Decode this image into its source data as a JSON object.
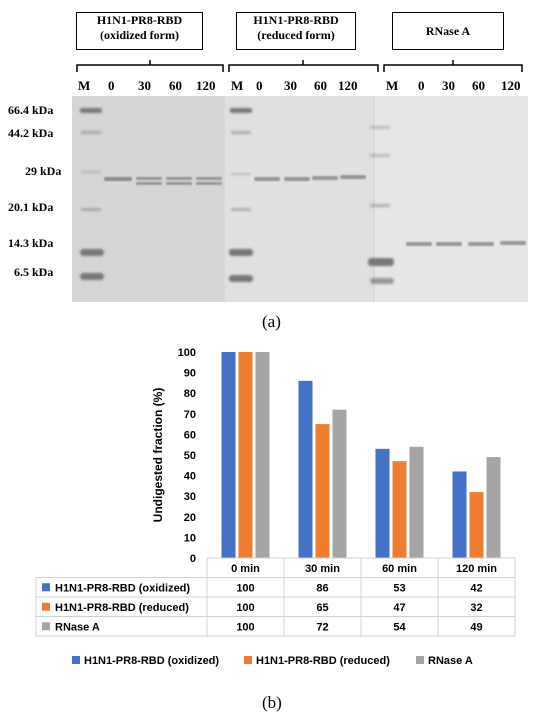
{
  "gel_panel": {
    "boxes": [
      {
        "line1": "H1N1-PR8-RBD",
        "line2": "(oxidized form)"
      },
      {
        "line1": "H1N1-PR8-RBD",
        "line2": "(reduced form)"
      },
      {
        "line1": "RNase A",
        "line2": ""
      }
    ],
    "lanes_group1": [
      "M",
      "0",
      "30",
      "60",
      "120"
    ],
    "lanes_group2": [
      "M",
      "0",
      "30",
      "60",
      "120"
    ],
    "lanes_group3": [
      "M",
      "0",
      "30",
      "60",
      "120"
    ],
    "markers": [
      "66.4 kDa",
      "44.2 kDa",
      "29 kDa",
      "20.1 kDa",
      "14.3 kDa",
      "6.5 kDa"
    ],
    "label": "(a)"
  },
  "chart_panel": {
    "label": "(b)"
  },
  "colors": {
    "oxidized": "#4472C4",
    "reduced": "#ED7D31",
    "rnase": "#A5A5A5"
  },
  "chart_data": {
    "type": "bar",
    "categories": [
      "0 min",
      "30 min",
      "60 min",
      "120 min"
    ],
    "series": [
      {
        "name": "H1N1-PR8-RBD (oxidized)",
        "values": [
          100,
          86,
          53,
          42
        ]
      },
      {
        "name": "H1N1-PR8-RBD (reduced)",
        "values": [
          100,
          65,
          47,
          32
        ]
      },
      {
        "name": "RNase A",
        "values": [
          100,
          72,
          54,
          49
        ]
      }
    ],
    "ylabel": "Undigested fraction (%)",
    "ylim": [
      0,
      100
    ],
    "yticks": [
      0,
      10,
      20,
      30,
      40,
      50,
      60,
      70,
      80,
      90,
      100
    ],
    "grid": false,
    "legend": "bottom",
    "data_table": true
  }
}
